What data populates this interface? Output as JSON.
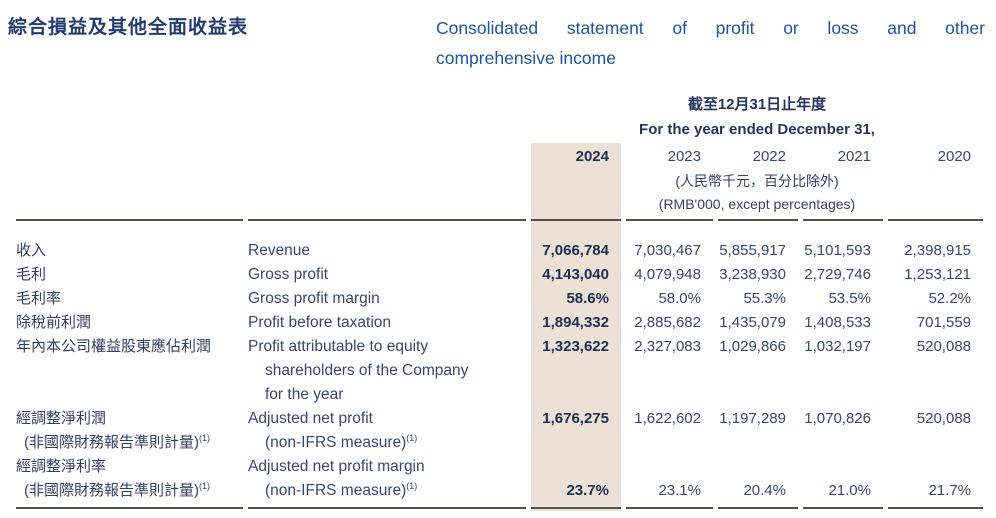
{
  "document": {
    "title_zh": "綜合損益及其他全面收益表",
    "title_en_lines": [
      "Consolidated statement of profit or loss and other",
      "comprehensive income"
    ]
  },
  "table": {
    "period_header_zh": "截至12月31日止年度",
    "period_header_en": "For the year ended December 31,",
    "years": [
      "2024",
      "2023",
      "2022",
      "2021",
      "2020"
    ],
    "highlighted_year": "2024",
    "unit_note_zh": "(人民幣千元，百分比除外)",
    "unit_note_en": "(RMB'000, except percentages)",
    "rows": [
      {
        "zh": [
          {
            "t": "收入"
          }
        ],
        "en": [
          {
            "t": "Revenue"
          }
        ],
        "values": [
          "7,066,784",
          "7,030,467",
          "5,855,917",
          "5,101,593",
          "2,398,915"
        ],
        "valign": "top"
      },
      {
        "zh": [
          {
            "t": "毛利"
          }
        ],
        "en": [
          {
            "t": "Gross profit"
          }
        ],
        "values": [
          "4,143,040",
          "4,079,948",
          "3,238,930",
          "2,729,746",
          "1,253,121"
        ],
        "valign": "top"
      },
      {
        "zh": [
          {
            "t": "毛利率"
          }
        ],
        "en": [
          {
            "t": "Gross profit margin"
          }
        ],
        "values": [
          "58.6%",
          "58.0%",
          "55.3%",
          "53.5%",
          "52.2%"
        ],
        "valign": "top"
      },
      {
        "zh": [
          {
            "t": "除稅前利潤"
          }
        ],
        "en": [
          {
            "t": "Profit before taxation"
          }
        ],
        "values": [
          "1,894,332",
          "2,885,682",
          "1,435,079",
          "1,408,533",
          "701,559"
        ],
        "valign": "top"
      },
      {
        "zh": [
          {
            "t": "年內本公司權益股東應佔利潤"
          }
        ],
        "en": [
          {
            "t": "Profit attributable to equity"
          },
          {
            "t": "shareholders of the Company",
            "indent": true
          },
          {
            "t": "for the year",
            "indent": true
          }
        ],
        "values": [
          "1,323,622",
          "2,327,083",
          "1,029,866",
          "1,032,197",
          "520,088"
        ],
        "valign": "top"
      },
      {
        "zh": [
          {
            "t": "經調整淨利潤"
          },
          {
            "t": "(非國際財務報告準則計量)",
            "sup": "(1)",
            "indent": true
          }
        ],
        "en": [
          {
            "t": "Adjusted net profit"
          },
          {
            "t": "(non-IFRS measure)",
            "sup": "(1)",
            "indent": true
          }
        ],
        "values": [
          "1,676,275",
          "1,622,602",
          "1,197,289",
          "1,070,826",
          "520,088"
        ],
        "valign": "top"
      },
      {
        "zh": [
          {
            "t": "經調整淨利率"
          },
          {
            "t": "(非國際財務報告準則計量)",
            "sup": "(1)",
            "indent": true
          }
        ],
        "en": [
          {
            "t": "Adjusted net profit margin"
          },
          {
            "t": "(non-IFRS measure)",
            "sup": "(1)",
            "indent": true
          }
        ],
        "values": [
          "23.7%",
          "23.1%",
          "20.4%",
          "21.0%",
          "21.7%"
        ],
        "valign": "bottom"
      }
    ]
  },
  "colors": {
    "title_blue_zh": "#223c6f",
    "title_blue_en": "#1d56a0",
    "body_navy": "#3b4670",
    "bold_navy": "#202d56",
    "highlight_beige": "#ebe2d5",
    "rule_brown": "#575046"
  }
}
